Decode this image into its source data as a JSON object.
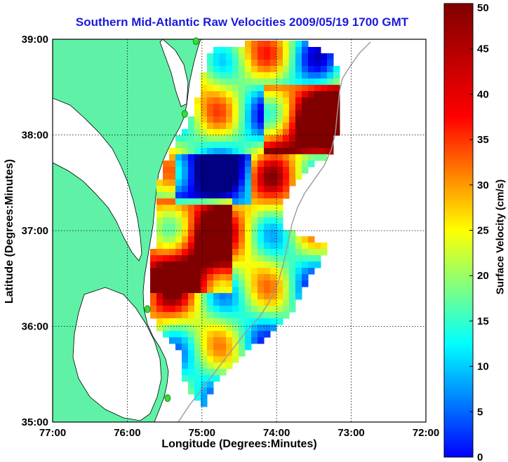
{
  "title": "Southern Mid-Atlantic Raw Velocities 2009/05/19 1700 GMT",
  "map": {
    "xlabel": "Longitude (Degrees:Minutes)",
    "ylabel": "Latitude (Degrees:Minutes)",
    "lon_range": [
      -77.0,
      -72.0
    ],
    "lat_range": [
      35.0,
      39.0
    ],
    "x_ticks": [
      "77:00",
      "76:00",
      "75:00",
      "74:00",
      "73:00",
      "72:00"
    ],
    "y_ticks": [
      "39:00",
      "38:00",
      "37:00",
      "36:00",
      "35:00"
    ],
    "grid": "dotted",
    "colors": {
      "land": "#5ff2a7",
      "water": "#ffffff",
      "coastline": "#000000",
      "station": "#33dd33",
      "bathymetry": "#9a9a9a"
    }
  },
  "colorbar": {
    "label": "Surface Velocity (cm/s)",
    "range": [
      0,
      50
    ],
    "ticks": [
      "50",
      "45",
      "40",
      "35",
      "30",
      "25",
      "20",
      "15",
      "10",
      "5",
      "0"
    ],
    "colormap": "jet"
  },
  "stations": [
    {
      "lon": -75.08,
      "lat": 38.98
    },
    {
      "lon": -75.23,
      "lat": 38.22
    },
    {
      "lon": -75.73,
      "lat": 36.18
    },
    {
      "lon": -75.46,
      "lat": 35.25
    }
  ]
}
